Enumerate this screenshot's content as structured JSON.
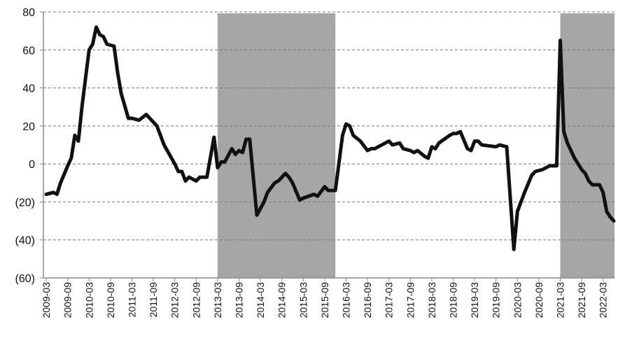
{
  "chart_data": {
    "type": "line",
    "title": "",
    "xlabel": "",
    "ylabel": "",
    "ylim": [
      -60,
      80
    ],
    "xlim": [
      "2009-03",
      "2022-06"
    ],
    "grid": {
      "horizontal": true,
      "style": "dashed"
    },
    "legend": "none",
    "y_ticks": [
      80,
      60,
      40,
      20,
      0,
      -20,
      -40,
      -60
    ],
    "y_tick_labels": [
      "80",
      "60",
      "40",
      "20",
      "0",
      "(20)",
      "(40)",
      "(60)"
    ],
    "x_tick_labels": [
      "2009-03",
      "2009-09",
      "2010-03",
      "2010-09",
      "2011-03",
      "2011-09",
      "2012-03",
      "2012-09",
      "2013-03",
      "2013-09",
      "2014-03",
      "2014-09",
      "2015-03",
      "2015-09",
      "2016-03",
      "2016-09",
      "2017-03",
      "2017-09",
      "2018-03",
      "2018-09",
      "2019-03",
      "2019-09",
      "2020-03",
      "2020-09",
      "2021-03",
      "2021-09",
      "2022-03"
    ],
    "shaded_periods": [
      {
        "start": "2013-03",
        "end": "2015-12"
      },
      {
        "start": "2021-03",
        "end": "2022-06"
      }
    ],
    "colors": {
      "line": "#111111",
      "shade": "#a6a6a6",
      "grid": "#777777",
      "axis": "#888888"
    },
    "series": [
      {
        "x": [
          "2009-03",
          "2009-05",
          "2009-06",
          "2009-07",
          "2009-09",
          "2009-10",
          "2009-11",
          "2009-12",
          "2010-01",
          "2010-02",
          "2010-03",
          "2010-04",
          "2010-05",
          "2010-06",
          "2010-07",
          "2010-08",
          "2010-10",
          "2010-11",
          "2010-12",
          "2011-02",
          "2011-03",
          "2011-05",
          "2011-07",
          "2011-09",
          "2011-10",
          "2011-12",
          "2012-03",
          "2012-04",
          "2012-05",
          "2012-06",
          "2012-07",
          "2012-09",
          "2012-10",
          "2012-12",
          "2013-02",
          "2013-03",
          "2013-04",
          "2013-05",
          "2013-07",
          "2013-08",
          "2013-09",
          "2013-10",
          "2013-11",
          "2013-12",
          "2014-02",
          "2014-04",
          "2014-05",
          "2014-07",
          "2014-08",
          "2014-10",
          "2014-11",
          "2014-12",
          "2015-02",
          "2015-03",
          "2015-06",
          "2015-07",
          "2015-09",
          "2015-10",
          "2015-12",
          "2016-02",
          "2016-03",
          "2016-04",
          "2016-05",
          "2016-07",
          "2016-09",
          "2016-10",
          "2016-11",
          "2017-03",
          "2017-04",
          "2017-06",
          "2017-07",
          "2017-09",
          "2017-10",
          "2017-11",
          "2018-01",
          "2018-02",
          "2018-03",
          "2018-04",
          "2018-05",
          "2018-08",
          "2018-09",
          "2018-10",
          "2018-11",
          "2019-01",
          "2019-02",
          "2019-03",
          "2019-04",
          "2019-05",
          "2019-09",
          "2019-10",
          "2019-12",
          "2020-02",
          "2020-03",
          "2020-05",
          "2020-07",
          "2020-08",
          "2020-10",
          "2020-12",
          "2021-02",
          "2021-03",
          "2021-04",
          "2021-05",
          "2021-07",
          "2021-08",
          "2021-09",
          "2021-10",
          "2021-11",
          "2021-12",
          "2022-02",
          "2022-03",
          "2022-04",
          "2022-05",
          "2022-06"
        ],
        "y": [
          -16,
          -15,
          -16,
          -10,
          -1,
          3,
          15,
          12,
          30,
          45,
          60,
          63,
          72,
          68,
          67,
          63,
          62,
          48,
          37,
          24,
          24,
          23,
          26,
          22,
          20,
          10,
          0,
          -4,
          -4,
          -9,
          -7,
          -9,
          -7,
          -7,
          14,
          -2,
          1,
          1,
          8,
          5,
          7,
          6,
          13,
          13,
          -27,
          -20,
          -15,
          -10,
          -9,
          -5,
          -7,
          -10,
          -19,
          -18,
          -16,
          -17,
          -12,
          -14,
          -14,
          15,
          21,
          20,
          15,
          12,
          7,
          8,
          8,
          12,
          10,
          11,
          8,
          7,
          6,
          7,
          4,
          3,
          9,
          8,
          11,
          15,
          16,
          16,
          17,
          8,
          7,
          12,
          12,
          10,
          9,
          10,
          9,
          -45,
          -25,
          -15,
          -6,
          -4,
          -3,
          -1,
          -1,
          65,
          17,
          11,
          3,
          0,
          -3,
          -5,
          -9,
          -11,
          -11,
          -15,
          -25,
          -28,
          -30
        ]
      }
    ]
  }
}
